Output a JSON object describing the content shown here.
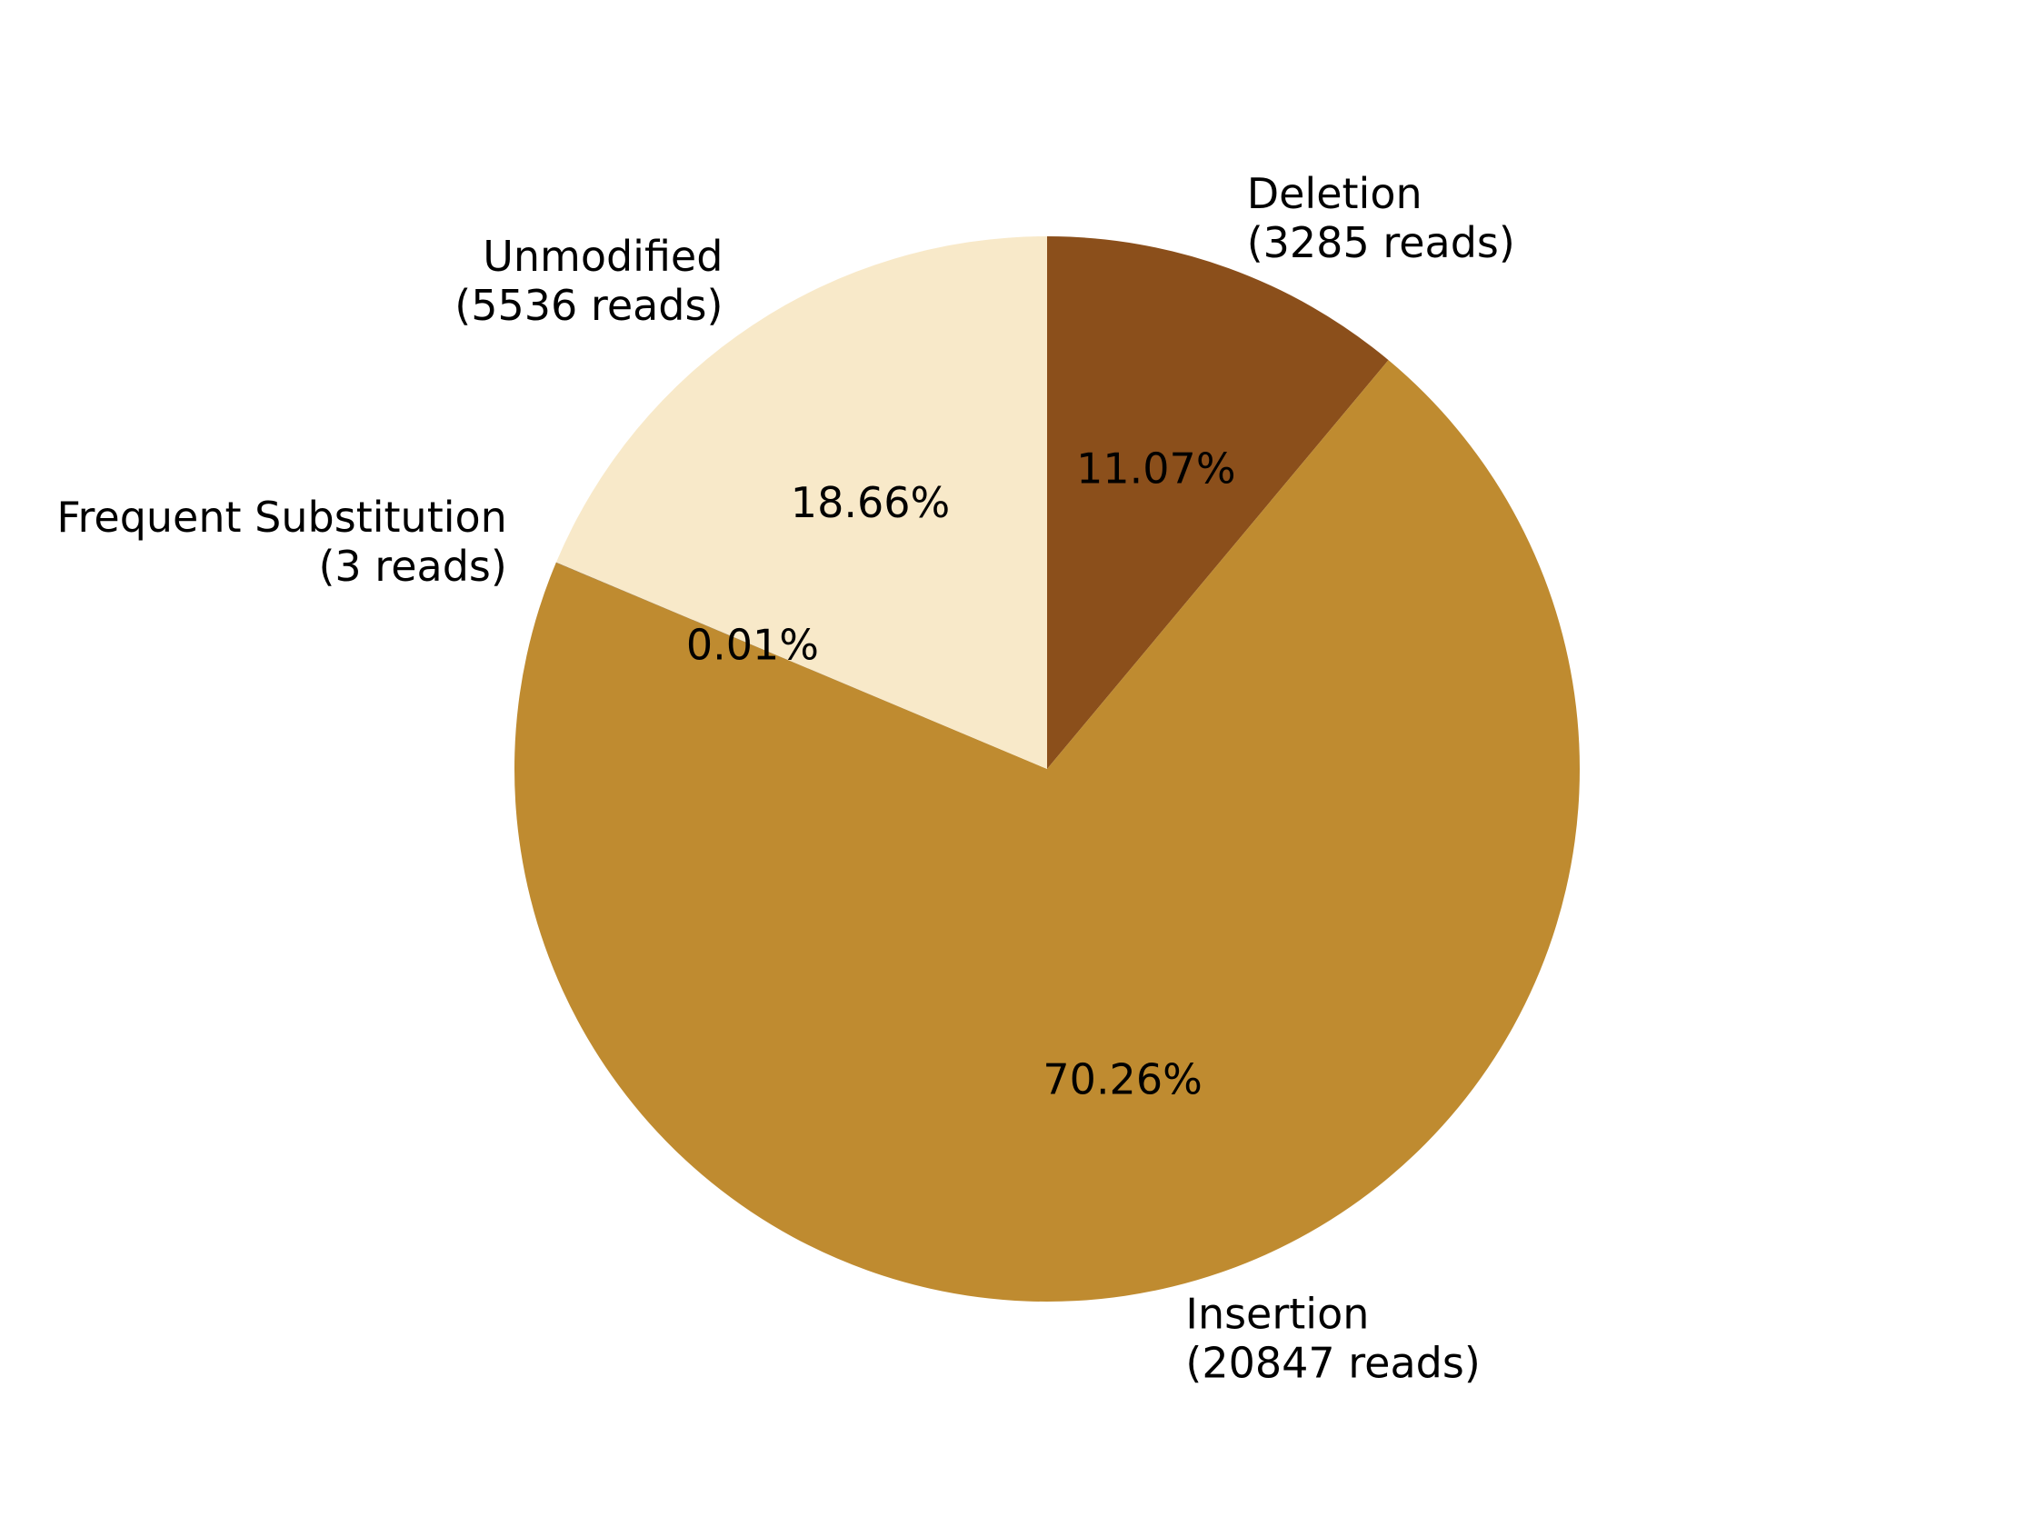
{
  "chart_data": {
    "type": "pie",
    "start_angle_deg": 90,
    "direction": "clockwise",
    "slices": [
      {
        "label": "Deletion",
        "reads_label": "(3285 reads)",
        "value": 3285,
        "pct_label": "11.07%",
        "color": "#8B4F1B"
      },
      {
        "label": "Insertion",
        "reads_label": "(20847 reads)",
        "value": 20847,
        "pct_label": "70.26%",
        "color": "#BF8B30"
      },
      {
        "label": "Frequent Substitution",
        "reads_label": "(3 reads)",
        "value": 3,
        "pct_label": "0.01%",
        "color": "#7A5A28"
      },
      {
        "label": "Unmodified",
        "reads_label": "(5536 reads)",
        "value": 5536,
        "pct_label": "18.66%",
        "color": "#F8E9C9"
      }
    ]
  }
}
